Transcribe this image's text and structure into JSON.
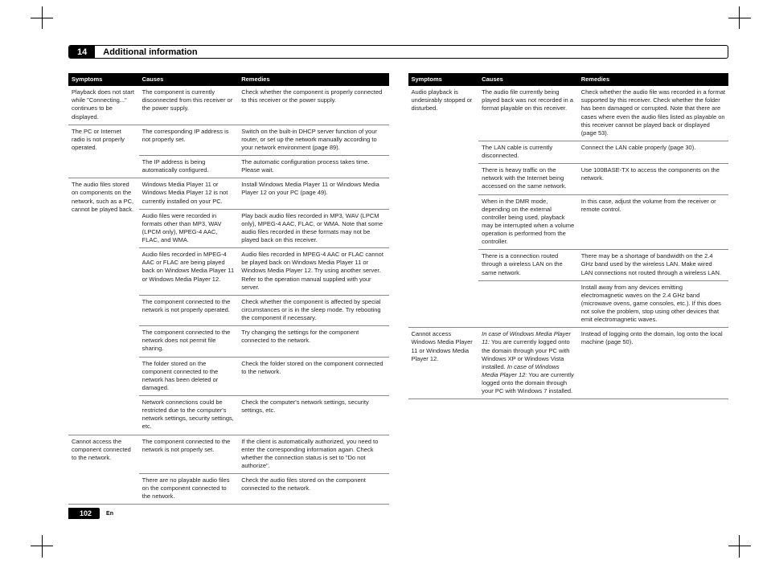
{
  "header": {
    "section_number": "14",
    "section_title": "Additional information"
  },
  "footer": {
    "page_number": "102",
    "lang": "En"
  },
  "table_headers": {
    "symptoms": "Symptoms",
    "causes": "Causes",
    "remedies": "Remedies"
  },
  "left_rows": [
    {
      "symptom": "Playback does not start while \"Connecting...\" continues to be displayed.",
      "cause": "The component is currently disconnected from this receiver or the power supply.",
      "remedy": "Check whether the component is properly connected to this receiver or the power supply."
    },
    {
      "symptom": "The PC or Internet radio is not properly operated.",
      "cause": "The corresponding IP address is not properly set.",
      "remedy": "Switch on the built-in DHCP server function of your router, or set up the network manually according to your network environment (page 89)."
    },
    {
      "symptom": "",
      "cause": "The IP address is being automatically configured.",
      "remedy": "The automatic configuration process takes time. Please wait."
    },
    {
      "symptom": "The audio files stored on components on the network, such as a PC, cannot be played back.",
      "cause": "Windows Media Player 11 or Windows Media Player 12 is not currently installed on your PC.",
      "remedy": "Install Windows Media Player 11 or Windows Media Player 12 on your PC (page 49)."
    },
    {
      "symptom": "",
      "cause": "Audio files were recorded in formats other than MP3, WAV (LPCM only), MPEG-4 AAC, FLAC, and WMA.",
      "remedy": "Play back audio files recorded in MP3, WAV (LPCM only), MPEG-4 AAC, FLAC, or WMA. Note that some audio files recorded in these formats may not be played back on this receiver."
    },
    {
      "symptom": "",
      "cause": "Audio files recorded in MPEG-4 AAC or FLAC are being played back on Windows Media Player 11 or Windows Media Player 12.",
      "remedy": "Audio files recorded in MPEG-4 AAC or FLAC cannot be played back on Windows Media Player 11 or Windows Media Player 12. Try using another server. Refer to the operation manual supplied with your server."
    },
    {
      "symptom": "",
      "cause": "The component connected to the network is not properly operated.",
      "remedy": "Check whether the component is affected by special circumstances or is in the sleep mode. Try rebooting the component if necessary."
    },
    {
      "symptom": "",
      "cause": "The component connected to the network does not permit file sharing.",
      "remedy": "Try changing the settings for the component connected to the network."
    },
    {
      "symptom": "",
      "cause": "The folder stored on the component connected to the network has been deleted or damaged.",
      "remedy": "Check the folder stored on the component connected to the network."
    },
    {
      "symptom": "",
      "cause": "Network connections could be restricted due to the computer's network settings, security settings, etc.",
      "remedy": "Check the computer's network settings, security settings, etc."
    },
    {
      "symptom": "Cannot access the component connected to the network.",
      "cause": "The component connected to the network is not properly set.",
      "remedy": "If the client is automatically authorized, you need to enter the corresponding information again. Check whether the connection status is set to \"Do not authorize\"."
    },
    {
      "symptom": "",
      "cause": "There are no playable audio files on the component connected to the network.",
      "remedy": "Check the audio files stored on the component connected to the network."
    }
  ],
  "right_rows": [
    {
      "symptom": "Audio playback is undesirably stopped or disturbed.",
      "cause": "The audio file currently being played back was not recorded in a format playable on this receiver.",
      "remedy": "Check whether the audio file was recorded in a format supported by this receiver. Check whether the folder has been damaged or corrupted. Note that there are cases where even the audio files listed as playable on this receiver cannot be played back or displayed (page 53)."
    },
    {
      "symptom": "",
      "cause": "The LAN cable is currently disconnected.",
      "remedy": "Connect the LAN cable properly (page 30)."
    },
    {
      "symptom": "",
      "cause": "There is heavy traffic on the network with the Internet being accessed on the same network.",
      "remedy": "Use 100BASE-TX to access the components on the network."
    },
    {
      "symptom": "",
      "cause": "When in the DMR mode, depending on the external controller being used, playback may be interrupted when a volume operation is performed from the controller.",
      "remedy": "In this case, adjust the volume from the receiver or remote control."
    },
    {
      "symptom": "",
      "cause": "There is a connection routed through a wireless LAN on the same network.",
      "remedy": "There may be a shortage of bandwidth on the 2.4 GHz band used by the wireless LAN. Make wired LAN connections not routed through a wireless LAN."
    },
    {
      "symptom": "",
      "cause": "",
      "remedy": "Install away from any devices emitting electromagnetic waves on the 2.4 GHz band (microwave ovens, game consoles, etc.). If this does not solve the problem, stop using other devices that emit electromagnetic waves."
    },
    {
      "symptom": "Cannot access Windows Media Player 11 or Windows Media Player 12.",
      "cause_html": "<span class=\"ital\">In case of Windows Media Player 11:</span> You are currently logged onto the domain through your PC with Windows XP or Windows Vista installed. <span class=\"ital\">In case of Windows Media Player 12:</span> You are currently logged onto the domain through your PC with Windows 7 installed.",
      "remedy": "Instead of logging onto the domain, log onto the local machine (page 50)."
    }
  ]
}
